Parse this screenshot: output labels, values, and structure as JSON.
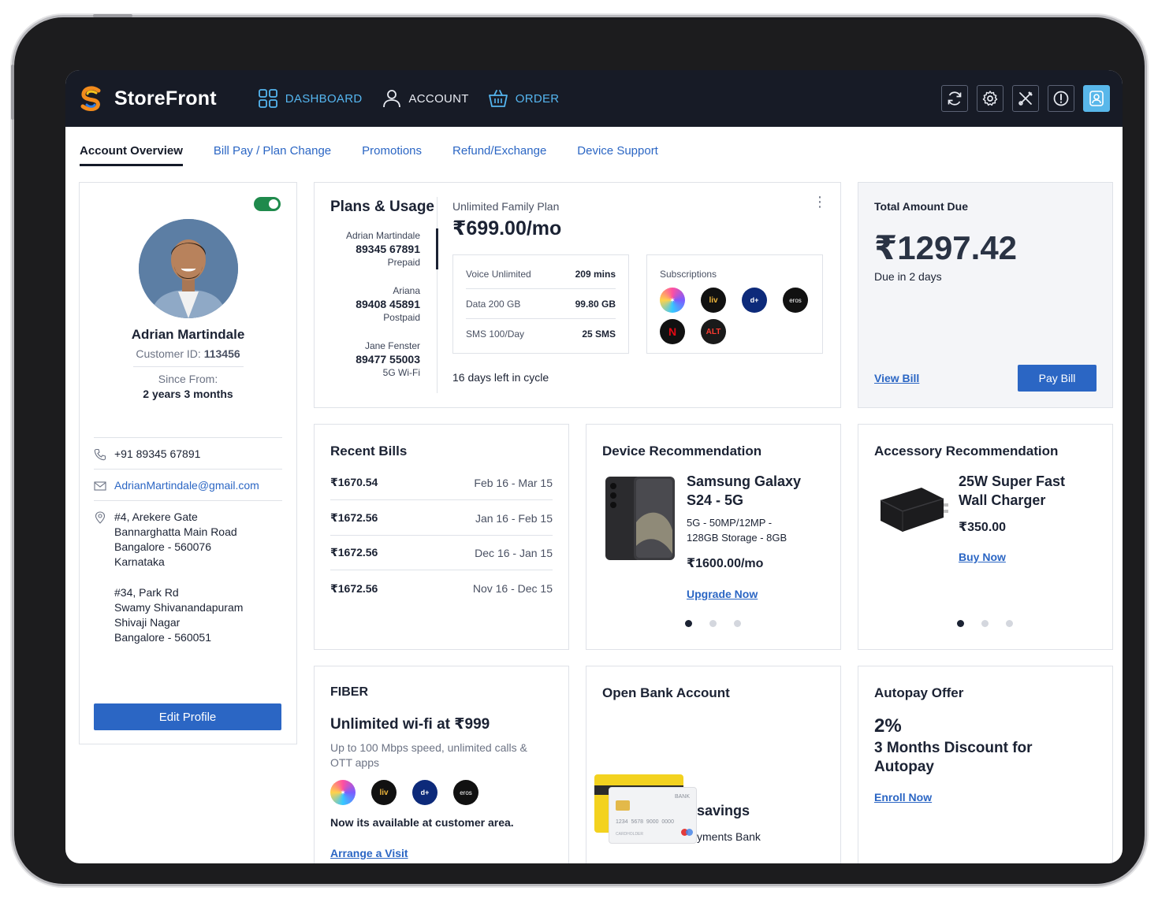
{
  "app": {
    "name": "StoreFront"
  },
  "nav": {
    "dashboard": "DASHBOARD",
    "account": "ACCOUNT",
    "order": "ORDER"
  },
  "toolbar_icons": [
    "refresh-icon",
    "settings-icon",
    "tools-icon",
    "info-icon",
    "user-icon"
  ],
  "tabs": [
    "Account Overview",
    "Bill Pay / Plan Change",
    "Promotions",
    "Refund/Exchange",
    "Device Support"
  ],
  "profile": {
    "name": "Adrian Martindale",
    "customer_id_label": "Customer ID:",
    "customer_id": "113456",
    "since_label": "Since From:",
    "since_value": "2 years 3 months",
    "phone": "+91 89345 67891",
    "email": "AdrianMartindale@gmail.com",
    "address1": [
      "#4, Arekere Gate",
      "Bannarghatta Main Road",
      "Bangalore - 560076",
      "Karnataka"
    ],
    "address2": [
      "#34, Park Rd",
      "Swamy Shivanandapuram",
      "Shivaji Nagar",
      "Bangalore - 560051"
    ],
    "edit_button": "Edit Profile",
    "toggle_on": true
  },
  "plans": {
    "title": "Plans & Usage",
    "lines": [
      {
        "name": "Adrian Martindale",
        "number": "89345 67891",
        "type": "Prepaid"
      },
      {
        "name": "Ariana",
        "number": "89408 45891",
        "type": "Postpaid"
      },
      {
        "name": "Jane Fenster",
        "number": "89477 55003",
        "type": "5G Wi-Fi"
      }
    ],
    "plan_name": "Unlimited Family Plan",
    "plan_price": "₹699.00/mo",
    "usage": [
      {
        "label": "Voice Unlimited",
        "value": "209 mins"
      },
      {
        "label": "Data 200 GB",
        "value": "99.80 GB"
      },
      {
        "label": "SMS 100/Day",
        "value": "25 SMS"
      }
    ],
    "subscriptions_label": "Subscriptions",
    "subscriptions": [
      "spark-icon",
      "sony-liv-icon",
      "discovery-plus-icon",
      "eros-now-icon",
      "netflix-icon",
      "alt-balaji-icon"
    ],
    "cycle": "16 days left in cycle"
  },
  "amount_due": {
    "label": "Total Amount Due",
    "value": "₹1297.42",
    "due": "Due in 2 days",
    "view_bill": "View Bill",
    "pay_bill": "Pay Bill"
  },
  "recent_bills": {
    "title": "Recent Bills",
    "rows": [
      {
        "amount": "₹1670.54",
        "period": "Feb 16 - Mar 15"
      },
      {
        "amount": "₹1672.56",
        "period": "Jan 16 - Feb 15"
      },
      {
        "amount": "₹1672.56",
        "period": "Dec 16 - Jan 15"
      },
      {
        "amount": "₹1672.56",
        "period": "Nov 16 - Dec 15"
      }
    ]
  },
  "device_rec": {
    "title": "Device Recommendation",
    "name_l1": "Samsung Galaxy",
    "name_l2": "S24 - 5G",
    "spec_l1": "5G - 50MP/12MP -",
    "spec_l2": "128GB Storage - 8GB",
    "price": "₹1600.00/mo",
    "cta": "Upgrade Now",
    "active_slide": 1,
    "slides": 3
  },
  "accessory_rec": {
    "title": "Accessory Recommendation",
    "name_l1": "25W Super Fast",
    "name_l2": "Wall Charger",
    "price": "₹350.00",
    "cta": "Buy Now",
    "active_slide": 1,
    "slides": 3
  },
  "fiber": {
    "heading": "FIBER",
    "title": "Unlimited wi-fi at ₹999",
    "desc": "Up to 100 Mbps speed, unlimited calls & OTT apps",
    "ott": [
      "spark-icon",
      "sony-liv-icon",
      "discovery-plus-icon",
      "eros-now-icon"
    ],
    "availability": "Now its available at customer area.",
    "cta": "Arrange a Visit"
  },
  "bank": {
    "title": "Open Bank Account",
    "line1": "savings",
    "line2": "yments Bank",
    "card_bank": "BANK",
    "card_number": "1234  5678  9000  0000",
    "card_holder": "CARDHOLDER"
  },
  "autopay": {
    "title": "Autopay Offer",
    "pct": "2%",
    "line1": "3 Months Discount for",
    "line2": "Autopay",
    "cta": "Enroll Now"
  },
  "colors": {
    "topbar": "#171b26",
    "accent": "#55b6f0",
    "primary": "#2b66c4",
    "toggle": "#1f8a4c"
  }
}
